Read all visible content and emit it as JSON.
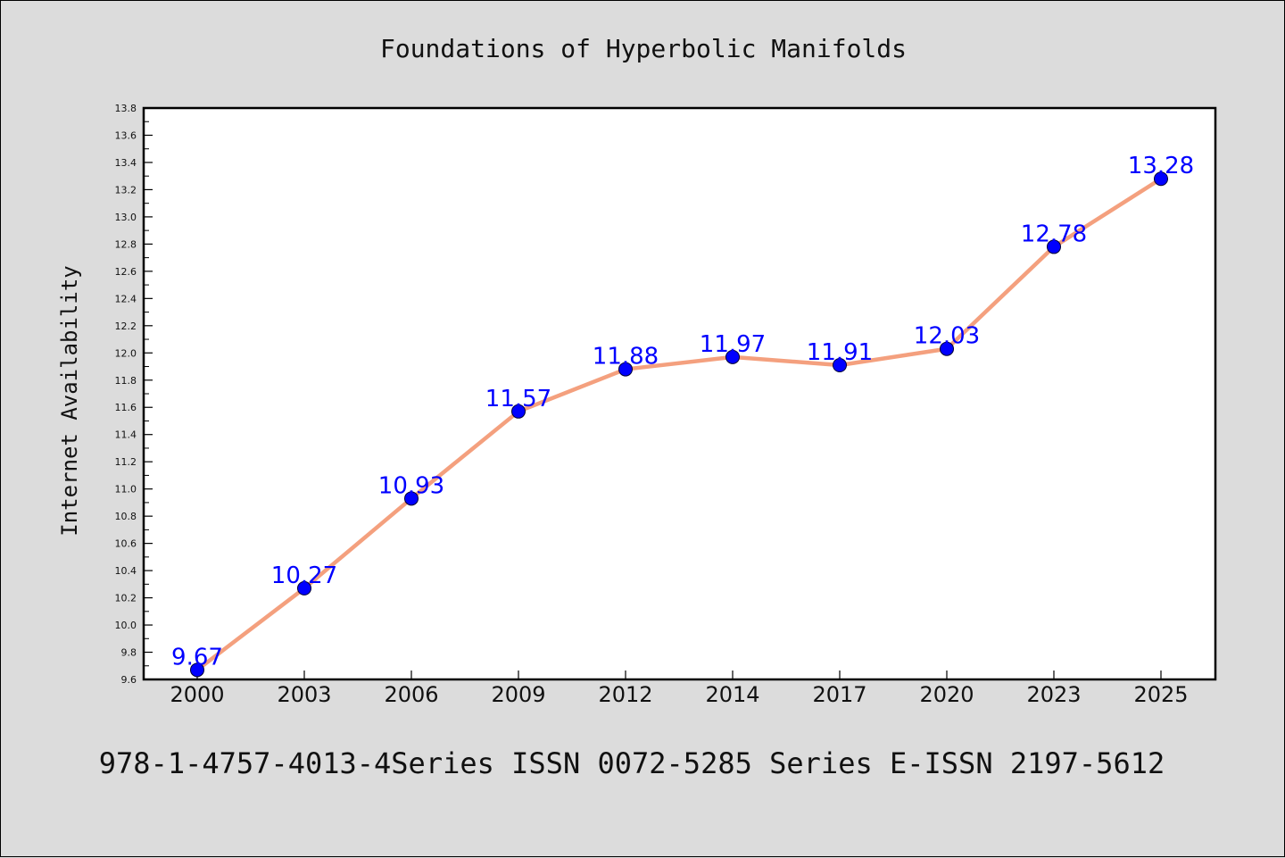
{
  "chart_data": {
    "type": "line",
    "title": "Foundations of Hyperbolic Manifolds",
    "ylabel": "Internet Availability",
    "xlabel": "",
    "categories": [
      "2000",
      "2003",
      "2006",
      "2009",
      "2012",
      "2014",
      "2017",
      "2020",
      "2023",
      "2025"
    ],
    "series": [
      {
        "values": [
          9.67,
          10.27,
          10.93,
          11.57,
          11.88,
          11.97,
          11.91,
          12.03,
          12.78,
          13.28
        ],
        "data_labels": [
          "9.67",
          "10.27",
          "10.93",
          "11.57",
          "11.88",
          "11.97",
          "11.91",
          "12.03",
          "12.78",
          "13.28"
        ],
        "line_color": "#f4a07e",
        "marker_color": "#0000ff"
      }
    ],
    "ylim": [
      9.6,
      13.8
    ],
    "yticks": [
      "9.6",
      "9.8",
      "10.0",
      "10.2",
      "10.4",
      "10.6",
      "10.8",
      "11.0",
      "11.2",
      "11.4",
      "11.6",
      "11.8",
      "12.0",
      "12.2",
      "12.4",
      "12.6",
      "12.8",
      "13.0",
      "13.2",
      "13.4",
      "13.6",
      "13.8"
    ],
    "grid": false,
    "legend": "none"
  },
  "footer": "978-1-4757-4013-4Series ISSN 0072-5285 Series E-ISSN 2197-5612",
  "colors": {
    "background": "#dcdcdc",
    "plot_background": "#ffffff",
    "line": "#f4a07e",
    "marker": "#0000ff",
    "data_label": "#0000ff"
  }
}
